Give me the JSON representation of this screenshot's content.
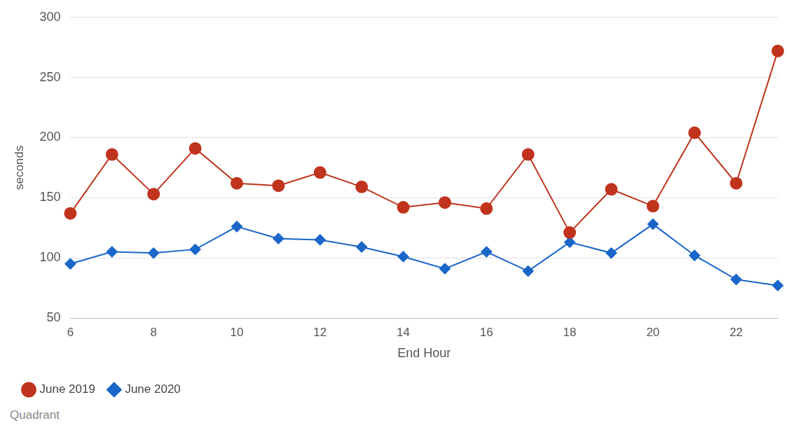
{
  "chart_data": {
    "type": "line",
    "x_label": "End Hour",
    "y_label": "seconds",
    "source": "Quadrant",
    "x": [
      6,
      7,
      8,
      9,
      10,
      11,
      12,
      13,
      14,
      15,
      16,
      17,
      18,
      19,
      20,
      21,
      22,
      23
    ],
    "series": [
      {
        "name": "June 2019",
        "color": "#c0331c",
        "marker": "circle",
        "values": [
          137,
          186,
          153,
          191,
          162,
          160,
          171,
          159,
          142,
          146,
          141,
          186,
          121,
          157,
          143,
          204,
          162,
          272
        ]
      },
      {
        "name": "June 2020",
        "color": "#1a66c9",
        "marker": "diamond",
        "values": [
          95,
          105,
          104,
          107,
          126,
          116,
          115,
          109,
          101,
          91,
          105,
          89,
          113,
          104,
          128,
          102,
          82,
          77
        ]
      }
    ],
    "xlim": [
      6,
      23
    ],
    "xticks": [
      6,
      8,
      10,
      12,
      14,
      16,
      18,
      20,
      22
    ],
    "ylim": [
      50,
      300
    ],
    "yticks": [
      50,
      100,
      150,
      200,
      250,
      300
    ],
    "grid": true,
    "legend": "bottom-left"
  }
}
